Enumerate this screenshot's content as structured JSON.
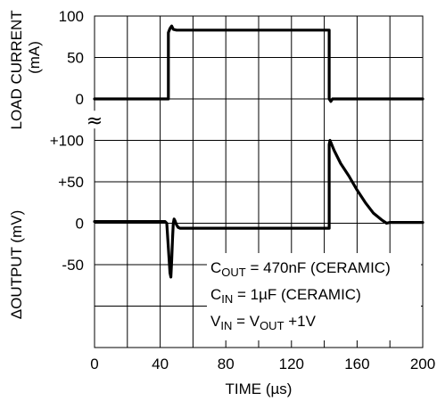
{
  "chart_data": {
    "type": "line",
    "title": "",
    "x_axis": {
      "label": "TIME (µs)",
      "range": [
        0,
        200
      ],
      "ticks": [
        0,
        40,
        80,
        120,
        160,
        200
      ],
      "tick_labels": [
        "0",
        "40",
        "80",
        "120",
        "160",
        "200"
      ]
    },
    "y_axes": [
      {
        "id": "current",
        "label_line1": "LOAD CURRENT",
        "label_line2": "(mA)",
        "range": [
          0,
          100
        ],
        "tick_values": [
          0,
          50,
          100
        ],
        "tick_labels": [
          "0",
          "50",
          "100"
        ]
      },
      {
        "id": "output",
        "label": "ΔOUTPUT (mV)",
        "range": [
          -150,
          100
        ],
        "tick_values": [
          100,
          50,
          0,
          -50
        ],
        "tick_labels": [
          "+100",
          "+50",
          "0",
          "-50"
        ]
      }
    ],
    "axis_break_symbol": "≈",
    "grid": true,
    "series": [
      {
        "axis": "current",
        "points": [
          [
            0,
            0
          ],
          [
            44,
            0
          ],
          [
            45,
            0
          ],
          [
            45,
            80
          ],
          [
            46,
            85
          ],
          [
            47,
            88
          ],
          [
            48,
            84
          ],
          [
            50,
            83
          ],
          [
            60,
            83
          ],
          [
            143,
            83
          ],
          [
            143,
            0
          ],
          [
            144,
            -3
          ],
          [
            145,
            0
          ],
          [
            200,
            0
          ]
        ]
      },
      {
        "axis": "output",
        "points": [
          [
            0,
            2
          ],
          [
            43,
            2
          ],
          [
            44,
            0
          ],
          [
            45,
            -30
          ],
          [
            46,
            -60
          ],
          [
            46.5,
            -65
          ],
          [
            47,
            -45
          ],
          [
            47.5,
            -20
          ],
          [
            48,
            0
          ],
          [
            48.5,
            5
          ],
          [
            49,
            3
          ],
          [
            50,
            -2
          ],
          [
            51,
            -5
          ],
          [
            52,
            -6
          ],
          [
            60,
            -6
          ],
          [
            143,
            -6
          ],
          [
            143,
            95
          ],
          [
            143.5,
            100
          ],
          [
            146,
            88
          ],
          [
            150,
            72
          ],
          [
            155,
            57
          ],
          [
            160,
            40
          ],
          [
            165,
            25
          ],
          [
            170,
            12
          ],
          [
            175,
            4
          ],
          [
            178,
            0
          ],
          [
            180,
            1
          ],
          [
            200,
            1
          ]
        ]
      }
    ],
    "annotations": [
      {
        "parts": [
          "C",
          "OUT",
          " = 470nF (CERAMIC)"
        ]
      },
      {
        "parts": [
          "C",
          "IN",
          " = 1µF (CERAMIC)"
        ]
      },
      {
        "parts": [
          "V",
          "IN",
          " = V",
          "OUT",
          " +1V"
        ]
      }
    ]
  }
}
